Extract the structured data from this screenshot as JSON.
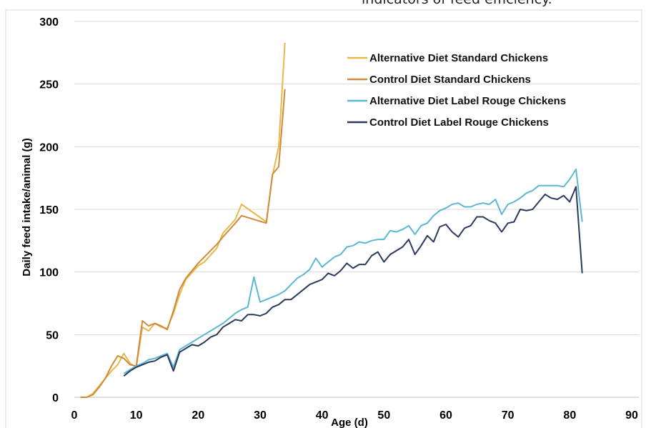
{
  "caption": "indicators of feed efficiency.",
  "chart_data": {
    "type": "line",
    "title": "",
    "xlabel": "Age (d)",
    "ylabel": "Daily feed intake/animal (g)",
    "xlim": [
      0,
      90
    ],
    "ylim": [
      0,
      300
    ],
    "xticks": [
      0,
      10,
      20,
      30,
      40,
      50,
      60,
      70,
      80,
      90
    ],
    "yticks": [
      0,
      50,
      100,
      150,
      200,
      250,
      300
    ],
    "grid": "horizontal",
    "legend_position": "top-right",
    "series": [
      {
        "name": "Alternative Diet Standard Chickens",
        "color": "#e8b84a",
        "points": [
          [
            1,
            0
          ],
          [
            2,
            0
          ],
          [
            3,
            3
          ],
          [
            4,
            9
          ],
          [
            5,
            15
          ],
          [
            6,
            21
          ],
          [
            7,
            26
          ],
          [
            8,
            35
          ],
          [
            9,
            27
          ],
          [
            10,
            24
          ],
          [
            11,
            56
          ],
          [
            12,
            53
          ],
          [
            13,
            59
          ],
          [
            14,
            56
          ],
          [
            15,
            55
          ],
          [
            16,
            67
          ],
          [
            17,
            82
          ],
          [
            18,
            94
          ],
          [
            20,
            105
          ],
          [
            21,
            108
          ],
          [
            23,
            119
          ],
          [
            24,
            131
          ],
          [
            26,
            142
          ],
          [
            27,
            154
          ],
          [
            31,
            140
          ],
          [
            32,
            177
          ],
          [
            33,
            200
          ],
          [
            34,
            283
          ]
        ]
      },
      {
        "name": "Control Diet Standard Chickens",
        "color": "#d08a3a",
        "points": [
          [
            1,
            0
          ],
          [
            2,
            0
          ],
          [
            3,
            2
          ],
          [
            4,
            8
          ],
          [
            5,
            15
          ],
          [
            6,
            25
          ],
          [
            7,
            33
          ],
          [
            8,
            31
          ],
          [
            9,
            26
          ],
          [
            10,
            25
          ],
          [
            11,
            61
          ],
          [
            12,
            57
          ],
          [
            13,
            59
          ],
          [
            14,
            57
          ],
          [
            15,
            54
          ],
          [
            16,
            69
          ],
          [
            17,
            86
          ],
          [
            18,
            95
          ],
          [
            20,
            107
          ],
          [
            21,
            112
          ],
          [
            23,
            122
          ],
          [
            24,
            128
          ],
          [
            26,
            139
          ],
          [
            27,
            145
          ],
          [
            31,
            139
          ],
          [
            32,
            178
          ],
          [
            33,
            184
          ],
          [
            34,
            246
          ]
        ]
      },
      {
        "name": "Alternative Diet Label Rouge Chickens",
        "color": "#5bb8d4",
        "points": [
          [
            8,
            19
          ],
          [
            9,
            22
          ],
          [
            10,
            25
          ],
          [
            11,
            27
          ],
          [
            12,
            30
          ],
          [
            13,
            31
          ],
          [
            14,
            33
          ],
          [
            15,
            35
          ],
          [
            16,
            24
          ],
          [
            17,
            38
          ],
          [
            18,
            41
          ],
          [
            19,
            44
          ],
          [
            20,
            47
          ],
          [
            21,
            50
          ],
          [
            22,
            53
          ],
          [
            23,
            56
          ],
          [
            24,
            59
          ],
          [
            25,
            63
          ],
          [
            26,
            67
          ],
          [
            27,
            70
          ],
          [
            28,
            72
          ],
          [
            29,
            96
          ],
          [
            30,
            76
          ],
          [
            31,
            78
          ],
          [
            32,
            80
          ],
          [
            33,
            82
          ],
          [
            34,
            85
          ],
          [
            35,
            90
          ],
          [
            36,
            95
          ],
          [
            37,
            98
          ],
          [
            38,
            102
          ],
          [
            39,
            111
          ],
          [
            40,
            104
          ],
          [
            41,
            108
          ],
          [
            42,
            112
          ],
          [
            43,
            114
          ],
          [
            44,
            120
          ],
          [
            45,
            121
          ],
          [
            46,
            124
          ],
          [
            47,
            123
          ],
          [
            48,
            125
          ],
          [
            49,
            126
          ],
          [
            50,
            126
          ],
          [
            51,
            133
          ],
          [
            52,
            132
          ],
          [
            53,
            134
          ],
          [
            54,
            137
          ],
          [
            55,
            130
          ],
          [
            56,
            137
          ],
          [
            57,
            139
          ],
          [
            58,
            145
          ],
          [
            59,
            149
          ],
          [
            60,
            151
          ],
          [
            61,
            154
          ],
          [
            62,
            155
          ],
          [
            63,
            152
          ],
          [
            64,
            152
          ],
          [
            65,
            154
          ],
          [
            66,
            155
          ],
          [
            67,
            154
          ],
          [
            68,
            158
          ],
          [
            69,
            146
          ],
          [
            70,
            154
          ],
          [
            71,
            156
          ],
          [
            72,
            159
          ],
          [
            73,
            163
          ],
          [
            74,
            165
          ],
          [
            75,
            169
          ],
          [
            76,
            169
          ],
          [
            77,
            169
          ],
          [
            78,
            169
          ],
          [
            79,
            168
          ],
          [
            80,
            174
          ],
          [
            81,
            182
          ],
          [
            82,
            140
          ]
        ]
      },
      {
        "name": "Control Diet Label Rouge Chickens",
        "color": "#2b3a5c",
        "points": [
          [
            8,
            17
          ],
          [
            9,
            21
          ],
          [
            10,
            24
          ],
          [
            11,
            26
          ],
          [
            12,
            28
          ],
          [
            13,
            29
          ],
          [
            14,
            32
          ],
          [
            15,
            34
          ],
          [
            16,
            21
          ],
          [
            17,
            36
          ],
          [
            18,
            39
          ],
          [
            19,
            42
          ],
          [
            20,
            41
          ],
          [
            21,
            44
          ],
          [
            22,
            48
          ],
          [
            23,
            50
          ],
          [
            24,
            56
          ],
          [
            25,
            59
          ],
          [
            26,
            62
          ],
          [
            27,
            61
          ],
          [
            28,
            66
          ],
          [
            29,
            66
          ],
          [
            30,
            65
          ],
          [
            31,
            67
          ],
          [
            32,
            72
          ],
          [
            33,
            74
          ],
          [
            34,
            78
          ],
          [
            35,
            78
          ],
          [
            36,
            82
          ],
          [
            37,
            86
          ],
          [
            38,
            90
          ],
          [
            39,
            92
          ],
          [
            40,
            94
          ],
          [
            41,
            99
          ],
          [
            42,
            97
          ],
          [
            43,
            101
          ],
          [
            44,
            107
          ],
          [
            45,
            103
          ],
          [
            46,
            106
          ],
          [
            47,
            106
          ],
          [
            48,
            113
          ],
          [
            49,
            116
          ],
          [
            50,
            108
          ],
          [
            51,
            114
          ],
          [
            52,
            117
          ],
          [
            53,
            120
          ],
          [
            54,
            126
          ],
          [
            55,
            114
          ],
          [
            56,
            121
          ],
          [
            57,
            129
          ],
          [
            58,
            124
          ],
          [
            59,
            136
          ],
          [
            60,
            138
          ],
          [
            61,
            132
          ],
          [
            62,
            128
          ],
          [
            63,
            135
          ],
          [
            64,
            137
          ],
          [
            65,
            144
          ],
          [
            66,
            144
          ],
          [
            67,
            141
          ],
          [
            68,
            139
          ],
          [
            69,
            132
          ],
          [
            70,
            139
          ],
          [
            71,
            140
          ],
          [
            72,
            150
          ],
          [
            73,
            149
          ],
          [
            74,
            150
          ],
          [
            75,
            156
          ],
          [
            76,
            162
          ],
          [
            77,
            159
          ],
          [
            78,
            158
          ],
          [
            79,
            161
          ],
          [
            80,
            156
          ],
          [
            81,
            168
          ],
          [
            82,
            99
          ]
        ]
      }
    ]
  }
}
